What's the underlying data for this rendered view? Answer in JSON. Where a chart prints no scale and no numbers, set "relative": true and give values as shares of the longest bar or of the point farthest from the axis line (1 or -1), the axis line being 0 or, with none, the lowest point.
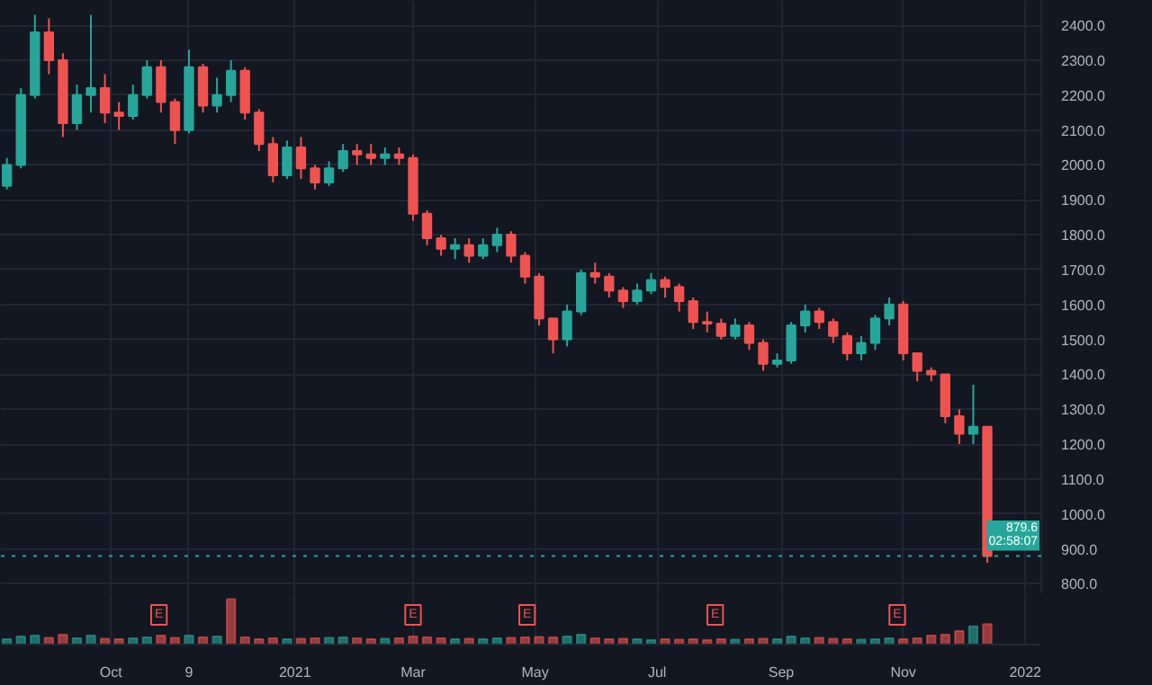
{
  "chart_data": [
    {
      "type": "candlestick",
      "x": [
        "2020-08-10",
        "2020-08-17",
        "2020-08-24",
        "2020-08-31",
        "2020-09-07",
        "2020-09-14",
        "2020-09-21",
        "2020-09-28",
        "2020-10-05",
        "2020-10-12",
        "2020-10-19",
        "2020-10-26",
        "2020-11-02",
        "2020-11-09",
        "2020-11-16",
        "2020-11-23",
        "2020-11-30",
        "2020-12-07",
        "2020-12-14",
        "2020-12-21",
        "2020-12-28",
        "2021-01-04",
        "2021-01-11",
        "2021-01-18",
        "2021-01-25",
        "2021-02-01",
        "2021-02-08",
        "2021-02-15",
        "2021-02-22",
        "2021-03-01",
        "2021-03-08",
        "2021-03-15",
        "2021-03-22",
        "2021-03-29",
        "2021-04-05",
        "2021-04-12",
        "2021-04-19",
        "2021-04-26",
        "2021-05-03",
        "2021-05-10",
        "2021-05-17",
        "2021-05-24",
        "2021-05-31",
        "2021-06-07",
        "2021-06-14",
        "2021-06-21",
        "2021-06-28",
        "2021-07-05",
        "2021-07-12",
        "2021-07-19",
        "2021-07-26",
        "2021-08-02",
        "2021-08-09",
        "2021-08-16",
        "2021-08-23",
        "2021-08-30",
        "2021-09-06",
        "2021-09-13",
        "2021-09-20",
        "2021-09-27",
        "2021-10-04",
        "2021-10-11",
        "2021-10-18",
        "2021-10-25",
        "2021-11-01",
        "2021-11-08",
        "2021-11-15",
        "2021-11-22",
        "2021-11-29",
        "2021-12-06",
        "2021-12-13"
      ],
      "ohlc": [
        [
          1940,
          2020,
          1930,
          2000
        ],
        [
          2000,
          2220,
          1990,
          2200
        ],
        [
          2200,
          2430,
          2190,
          2380
        ],
        [
          2380,
          2420,
          2260,
          2300
        ],
        [
          2300,
          2320,
          2080,
          2120
        ],
        [
          2120,
          2230,
          2100,
          2200
        ],
        [
          2200,
          2430,
          2150,
          2220
        ],
        [
          2220,
          2260,
          2120,
          2150
        ],
        [
          2150,
          2180,
          2100,
          2140
        ],
        [
          2140,
          2230,
          2130,
          2200
        ],
        [
          2200,
          2300,
          2190,
          2280
        ],
        [
          2280,
          2300,
          2150,
          2180
        ],
        [
          2180,
          2190,
          2060,
          2100
        ],
        [
          2100,
          2330,
          2090,
          2280
        ],
        [
          2280,
          2290,
          2150,
          2170
        ],
        [
          2170,
          2250,
          2150,
          2200
        ],
        [
          2200,
          2300,
          2180,
          2270
        ],
        [
          2270,
          2280,
          2130,
          2150
        ],
        [
          2150,
          2160,
          2040,
          2060
        ],
        [
          2060,
          2080,
          1950,
          1970
        ],
        [
          1970,
          2070,
          1960,
          2050
        ],
        [
          2050,
          2080,
          1960,
          1990
        ],
        [
          1990,
          2000,
          1930,
          1950
        ],
        [
          1950,
          2010,
          1940,
          1990
        ],
        [
          1990,
          2060,
          1980,
          2040
        ],
        [
          2040,
          2060,
          2000,
          2030
        ],
        [
          2030,
          2060,
          2000,
          2020
        ],
        [
          2020,
          2050,
          2000,
          2030
        ],
        [
          2030,
          2050,
          2000,
          2020
        ],
        [
          2020,
          2030,
          1840,
          1860
        ],
        [
          1860,
          1870,
          1770,
          1790
        ],
        [
          1790,
          1800,
          1740,
          1760
        ],
        [
          1760,
          1790,
          1730,
          1770
        ],
        [
          1770,
          1790,
          1720,
          1740
        ],
        [
          1740,
          1790,
          1730,
          1770
        ],
        [
          1770,
          1820,
          1750,
          1800
        ],
        [
          1800,
          1810,
          1720,
          1740
        ],
        [
          1740,
          1750,
          1660,
          1680
        ],
        [
          1680,
          1690,
          1540,
          1560
        ],
        [
          1560,
          1560,
          1460,
          1500
        ],
        [
          1500,
          1600,
          1480,
          1580
        ],
        [
          1580,
          1700,
          1570,
          1690
        ],
        [
          1690,
          1720,
          1660,
          1680
        ],
        [
          1680,
          1690,
          1620,
          1640
        ],
        [
          1640,
          1650,
          1590,
          1610
        ],
        [
          1610,
          1660,
          1600,
          1640
        ],
        [
          1640,
          1690,
          1630,
          1670
        ],
        [
          1670,
          1680,
          1620,
          1650
        ],
        [
          1650,
          1660,
          1580,
          1610
        ],
        [
          1610,
          1620,
          1530,
          1550
        ],
        [
          1550,
          1580,
          1520,
          1545
        ],
        [
          1545,
          1560,
          1500,
          1510
        ],
        [
          1510,
          1560,
          1500,
          1540
        ],
        [
          1540,
          1550,
          1470,
          1490
        ],
        [
          1490,
          1500,
          1410,
          1430
        ],
        [
          1430,
          1460,
          1420,
          1440
        ],
        [
          1440,
          1550,
          1430,
          1540
        ],
        [
          1540,
          1600,
          1520,
          1580
        ],
        [
          1580,
          1590,
          1530,
          1550
        ],
        [
          1550,
          1560,
          1490,
          1510
        ],
        [
          1510,
          1520,
          1440,
          1460
        ],
        [
          1460,
          1510,
          1440,
          1490
        ],
        [
          1490,
          1570,
          1470,
          1560
        ],
        [
          1560,
          1620,
          1540,
          1600
        ],
        [
          1600,
          1610,
          1440,
          1460
        ],
        [
          1460,
          1460,
          1380,
          1410
        ],
        [
          1410,
          1420,
          1380,
          1400
        ],
        [
          1400,
          1400,
          1260,
          1280
        ],
        [
          1280,
          1300,
          1200,
          1230
        ],
        [
          1230,
          1370,
          1200,
          1250
        ],
        [
          1250,
          1250,
          860,
          879.6
        ]
      ],
      "colors": [
        "#26a69a",
        "#26a69a",
        "#26a69a",
        "#ef5350",
        "#ef5350",
        "#26a69a",
        "#26a69a",
        "#ef5350",
        "#ef5350",
        "#26a69a",
        "#26a69a",
        "#ef5350",
        "#ef5350",
        "#26a69a",
        "#ef5350",
        "#26a69a",
        "#26a69a",
        "#ef5350",
        "#ef5350",
        "#ef5350",
        "#26a69a",
        "#ef5350",
        "#ef5350",
        "#26a69a",
        "#26a69a",
        "#ef5350",
        "#ef5350",
        "#26a69a",
        "#ef5350",
        "#ef5350",
        "#ef5350",
        "#ef5350",
        "#26a69a",
        "#ef5350",
        "#26a69a",
        "#26a69a",
        "#ef5350",
        "#ef5350",
        "#ef5350",
        "#ef5350",
        "#26a69a",
        "#26a69a",
        "#ef5350",
        "#ef5350",
        "#ef5350",
        "#26a69a",
        "#26a69a",
        "#ef5350",
        "#ef5350",
        "#ef5350",
        "#ef5350",
        "#ef5350",
        "#26a69a",
        "#ef5350",
        "#ef5350",
        "#26a69a",
        "#26a69a",
        "#26a69a",
        "#ef5350",
        "#ef5350",
        "#ef5350",
        "#26a69a",
        "#26a69a",
        "#26a69a",
        "#ef5350",
        "#ef5350",
        "#ef5350",
        "#ef5350",
        "#ef5350",
        "#26a69a",
        "#ef5350"
      ],
      "xlim": [
        "2020-08-07",
        "2022-01-09"
      ],
      "xticks": [
        "2020-10-01",
        "2020-11-09",
        "2021-01-01",
        "2021-03-01",
        "2021-05-01",
        "2021-07-01",
        "2021-09-01",
        "2021-11-01",
        "2022-01-01"
      ],
      "ylim": [
        770,
        2470
      ],
      "yticks": [
        {
          "value": 800,
          "label": "800.0"
        },
        {
          "value": 900,
          "label": "900.0"
        },
        {
          "value": 1000,
          "label": "1000.0"
        },
        {
          "value": 1100,
          "label": "1100.0"
        },
        {
          "value": 1200,
          "label": "1200.0"
        },
        {
          "value": 1300,
          "label": "1300.0"
        },
        {
          "value": 1400,
          "label": "1400.0"
        },
        {
          "value": 1500,
          "label": "1500.0"
        },
        {
          "value": 1600,
          "label": "1600.0"
        },
        {
          "value": 1700,
          "label": "1700.0"
        },
        {
          "value": 1800,
          "label": "1800.0"
        },
        {
          "value": 1900,
          "label": "1900.0"
        },
        {
          "value": 2000,
          "label": "2000.0"
        },
        {
          "value": 2100,
          "label": "2100.0"
        },
        {
          "value": 2200,
          "label": "2200.0"
        },
        {
          "value": 2300,
          "label": "2300.0"
        },
        {
          "value": 2400,
          "label": "2400.0"
        }
      ],
      "ref_lines": [
        {
          "axis": "y",
          "value": 879.6,
          "label": "879.6",
          "color": "#26a69a",
          "line_style": "dotted"
        }
      ],
      "annotations": [
        "02:58:07"
      ],
      "grid": true,
      "tick_labels": "y"
    },
    {
      "type": "bar",
      "relative": true,
      "x": [
        "2020-08-10",
        "2020-08-17",
        "2020-08-24",
        "2020-08-31",
        "2020-09-07",
        "2020-09-14",
        "2020-09-21",
        "2020-09-28",
        "2020-10-05",
        "2020-10-12",
        "2020-10-19",
        "2020-10-26",
        "2020-11-02",
        "2020-11-09",
        "2020-11-16",
        "2020-11-23",
        "2020-11-30",
        "2020-12-07",
        "2020-12-14",
        "2020-12-21",
        "2020-12-28",
        "2021-01-04",
        "2021-01-11",
        "2021-01-18",
        "2021-01-25",
        "2021-02-01",
        "2021-02-08",
        "2021-02-15",
        "2021-02-22",
        "2021-03-01",
        "2021-03-08",
        "2021-03-15",
        "2021-03-22",
        "2021-03-29",
        "2021-04-05",
        "2021-04-12",
        "2021-04-19",
        "2021-04-26",
        "2021-05-03",
        "2021-05-10",
        "2021-05-17",
        "2021-05-24",
        "2021-05-31",
        "2021-06-07",
        "2021-06-14",
        "2021-06-21",
        "2021-06-28",
        "2021-07-05",
        "2021-07-12",
        "2021-07-19",
        "2021-07-26",
        "2021-08-02",
        "2021-08-09",
        "2021-08-16",
        "2021-08-23",
        "2021-08-30",
        "2021-09-06",
        "2021-09-13",
        "2021-09-20",
        "2021-09-27",
        "2021-10-04",
        "2021-10-11",
        "2021-10-18",
        "2021-10-25",
        "2021-11-01",
        "2021-11-08",
        "2021-11-15",
        "2021-11-22",
        "2021-11-29",
        "2021-12-06",
        "2021-12-13"
      ],
      "values": [
        0.12,
        0.18,
        0.2,
        0.15,
        0.22,
        0.14,
        0.2,
        0.13,
        0.12,
        0.14,
        0.16,
        0.2,
        0.15,
        0.2,
        0.16,
        0.18,
        1.0,
        0.16,
        0.12,
        0.14,
        0.12,
        0.13,
        0.14,
        0.15,
        0.16,
        0.14,
        0.12,
        0.13,
        0.14,
        0.18,
        0.16,
        0.14,
        0.12,
        0.13,
        0.12,
        0.14,
        0.15,
        0.16,
        0.17,
        0.16,
        0.18,
        0.22,
        0.14,
        0.12,
        0.13,
        0.12,
        0.1,
        0.12,
        0.11,
        0.12,
        0.1,
        0.12,
        0.11,
        0.12,
        0.13,
        0.12,
        0.18,
        0.14,
        0.15,
        0.13,
        0.12,
        0.11,
        0.12,
        0.14,
        0.12,
        0.14,
        0.2,
        0.22,
        0.3,
        0.4,
        0.45
      ],
      "colors": [
        "#26a69a",
        "#26a69a",
        "#26a69a",
        "#ef5350",
        "#ef5350",
        "#26a69a",
        "#26a69a",
        "#ef5350",
        "#ef5350",
        "#26a69a",
        "#26a69a",
        "#ef5350",
        "#ef5350",
        "#26a69a",
        "#ef5350",
        "#26a69a",
        "#ef5350",
        "#ef5350",
        "#ef5350",
        "#ef5350",
        "#26a69a",
        "#ef5350",
        "#ef5350",
        "#26a69a",
        "#26a69a",
        "#ef5350",
        "#ef5350",
        "#26a69a",
        "#ef5350",
        "#ef5350",
        "#ef5350",
        "#ef5350",
        "#26a69a",
        "#ef5350",
        "#26a69a",
        "#26a69a",
        "#ef5350",
        "#ef5350",
        "#ef5350",
        "#ef5350",
        "#26a69a",
        "#26a69a",
        "#ef5350",
        "#ef5350",
        "#ef5350",
        "#26a69a",
        "#26a69a",
        "#ef5350",
        "#ef5350",
        "#ef5350",
        "#ef5350",
        "#ef5350",
        "#26a69a",
        "#ef5350",
        "#ef5350",
        "#26a69a",
        "#26a69a",
        "#26a69a",
        "#ef5350",
        "#ef5350",
        "#ef5350",
        "#26a69a",
        "#26a69a",
        "#26a69a",
        "#ef5350",
        "#ef5350",
        "#ef5350",
        "#ef5350",
        "#ef5350",
        "#26a69a",
        "#ef5350"
      ],
      "xlim": [
        "2020-08-07",
        "2022-01-09"
      ],
      "xticks": [
        {
          "value": "2020-10-01",
          "label": "Oct"
        },
        {
          "value": "2020-11-09",
          "label": "9"
        },
        {
          "value": "2021-01-01",
          "label": "2021"
        },
        {
          "value": "2021-03-01",
          "label": "Mar"
        },
        {
          "value": "2021-05-01",
          "label": "May"
        },
        {
          "value": "2021-07-01",
          "label": "Jul"
        },
        {
          "value": "2021-09-01",
          "label": "Sep"
        },
        {
          "value": "2021-11-01",
          "label": "Nov"
        },
        {
          "value": "2022-01-01",
          "label": "2022"
        }
      ],
      "annotations": [
        {
          "text": "E",
          "x": "2020-10-25",
          "y": 0
        },
        {
          "text": "E",
          "x": "2021-03-01",
          "y": 0
        },
        {
          "text": "E",
          "x": "2021-04-27",
          "y": 0
        },
        {
          "text": "E",
          "x": "2021-07-30",
          "y": 0
        },
        {
          "text": "E",
          "x": "2021-10-29",
          "y": 0
        }
      ],
      "grid": "x",
      "tick_labels": "x"
    }
  ]
}
